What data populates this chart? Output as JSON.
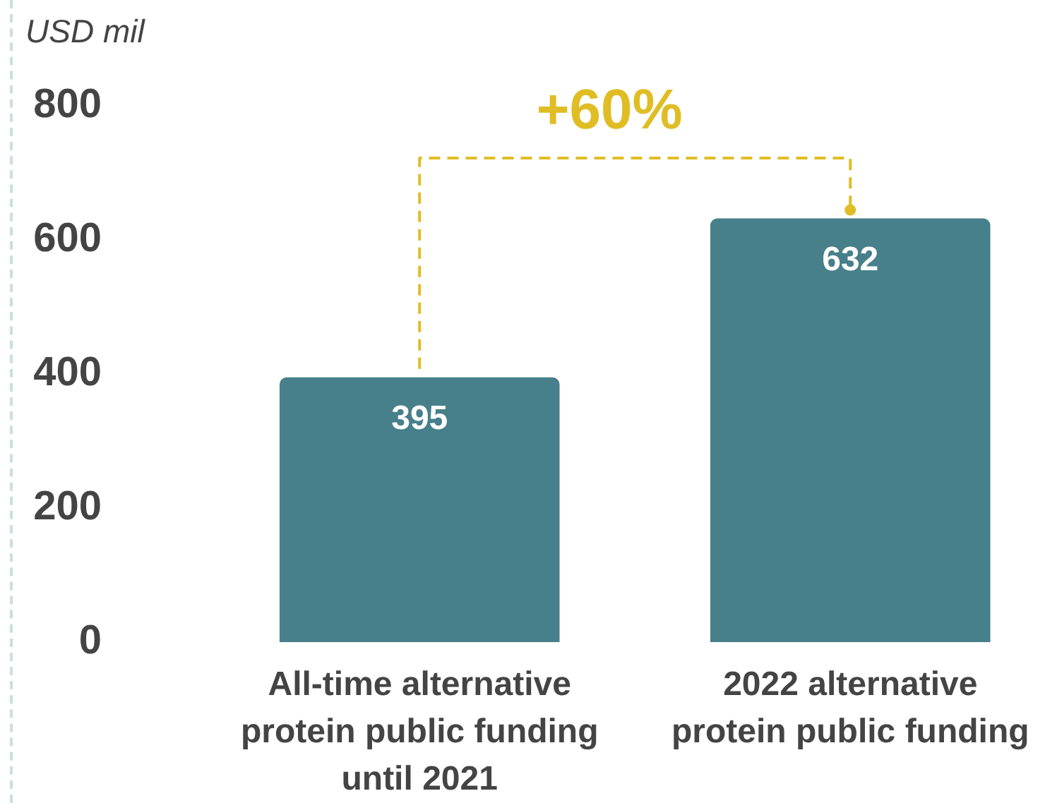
{
  "chart_data": {
    "type": "bar",
    "ylabel": "USD mil",
    "categories": [
      "All-time alternative protein public funding until 2021",
      "2022 alternative protein public funding"
    ],
    "values": [
      395,
      632
    ],
    "color": "#477f8a",
    "ylim": [
      0,
      800
    ],
    "yticks": [
      0,
      200,
      400,
      600,
      800
    ],
    "data_labels": true,
    "annotations": [
      "+60%"
    ]
  }
}
